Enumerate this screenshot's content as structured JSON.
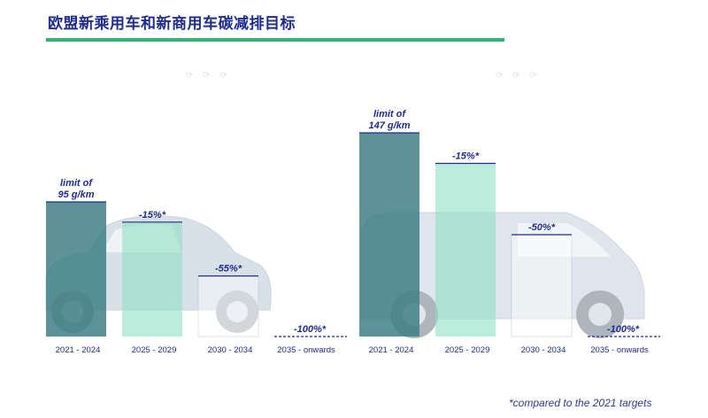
{
  "title": "欧盟新乘用车和新商用车碳减排目标",
  "footnote": "*compared to the 2021 targets",
  "colors": {
    "title": "#1d2c8f",
    "underline": "#2bb673",
    "bar_base": "#3f7f86",
    "bar_mid": "#8fe0c3",
    "bar_light": "#ffffff",
    "label": "#1d2c8f"
  },
  "chart_data": [
    {
      "type": "bar",
      "vehicle": "car",
      "categories": [
        "2021 - 2024",
        "2025 - 2029",
        "2030 - 2034",
        "2035 - onwards"
      ],
      "values": [
        95,
        80.75,
        42.75,
        0
      ],
      "unit": "g/km",
      "labels": [
        "limit of",
        "-15%*",
        "-55%*",
        "-100%*"
      ],
      "limit_text": "95 g/km"
    },
    {
      "type": "bar",
      "vehicle": "van",
      "categories": [
        "2021 - 2024",
        "2025 - 2029",
        "2030 - 2034",
        "2035 - onwards"
      ],
      "values": [
        147,
        124.95,
        73.5,
        0
      ],
      "unit": "g/km",
      "labels": [
        "limit of",
        "-15%*",
        "-50%*",
        "-100%*"
      ],
      "limit_text": "147 g/km"
    }
  ]
}
